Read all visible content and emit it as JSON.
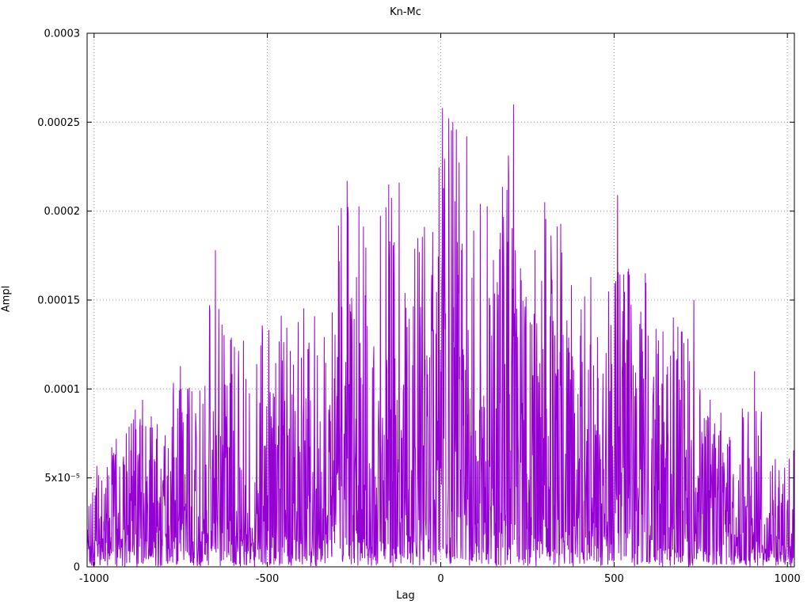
{
  "chart_data": {
    "type": "line",
    "title": "Kn-Mc",
    "xlabel": "Lag",
    "ylabel": "Ampl",
    "xlim": [
      -1020,
      1020
    ],
    "ylim": [
      0,
      0.0003
    ],
    "grid": true,
    "legend": "none",
    "line_color": "#9400D3",
    "grid_color": "#9a9ab0",
    "border_color": "#000000",
    "x_ticks": [
      {
        "v": -1000,
        "label": "-1000"
      },
      {
        "v": -500,
        "label": "-500"
      },
      {
        "v": 0,
        "label": "0"
      },
      {
        "v": 500,
        "label": "500"
      },
      {
        "v": 1000,
        "label": "1000"
      }
    ],
    "y_ticks": [
      {
        "v": 0,
        "label": "0"
      },
      {
        "v": 5e-05,
        "label": "5x10⁻⁵"
      },
      {
        "v": 0.0001,
        "label": "0.0001"
      },
      {
        "v": 0.00015,
        "label": "0.00015"
      },
      {
        "v": 0.0002,
        "label": "0.0002"
      },
      {
        "v": 0.00025,
        "label": "0.00025"
      },
      {
        "v": 0.0003,
        "label": "0.0003"
      }
    ],
    "description": "Noisy cross-correlation amplitude vs lag; dense spiky purple trace with triangular envelope peaking near lag 0 at ~2.6e-4 and tapering to ~2e-5 at lags ±1000.",
    "envelope": {
      "x": [
        -1020,
        -950,
        -900,
        -850,
        -800,
        -750,
        -700,
        -650,
        -600,
        -550,
        -500,
        -450,
        -400,
        -350,
        -300,
        -250,
        -200,
        -150,
        -100,
        -50,
        0,
        50,
        100,
        150,
        200,
        250,
        300,
        350,
        400,
        450,
        500,
        550,
        600,
        650,
        700,
        750,
        800,
        850,
        900,
        950,
        1020
      ],
      "max": [
        5.5e-05,
        7e-05,
        9e-05,
        9.5e-05,
        8e-05,
        0.000122,
        9.2e-05,
        0.000178,
        0.00013,
        0.000135,
        0.000151,
        0.000142,
        0.000186,
        0.000175,
        0.000202,
        0.000217,
        0.00018,
        0.000215,
        0.00018,
        0.0002,
        0.000258,
        0.00025,
        0.000242,
        0.000185,
        0.00026,
        0.000185,
        0.000205,
        0.000192,
        0.000155,
        0.00017,
        0.000209,
        0.00016,
        0.000165,
        0.00014,
        0.00015,
        0.0001,
        9e-05,
        8e-05,
        0.00011,
        6.5e-05,
        7e-05
      ],
      "typical_fill_fraction": 0.35,
      "baseline_level": 2e-05
    },
    "peaks": [
      {
        "x": -650,
        "y": 0.000178
      },
      {
        "x": -270,
        "y": 0.000217
      },
      {
        "x": -150,
        "y": 0.000215
      },
      {
        "x": -120,
        "y": 0.000216
      },
      {
        "x": 5,
        "y": 0.000258
      },
      {
        "x": 35,
        "y": 0.00025
      },
      {
        "x": 75,
        "y": 0.000242
      },
      {
        "x": 210,
        "y": 0.00026
      },
      {
        "x": 300,
        "y": 0.000205
      },
      {
        "x": 510,
        "y": 0.000209
      },
      {
        "x": 590,
        "y": 0.000165
      },
      {
        "x": 730,
        "y": 0.00015
      },
      {
        "x": 905,
        "y": 0.00011
      }
    ],
    "noise": {
      "seed": 1337,
      "shape_exponent": 2.2,
      "floor_max": 2.2e-05
    }
  }
}
